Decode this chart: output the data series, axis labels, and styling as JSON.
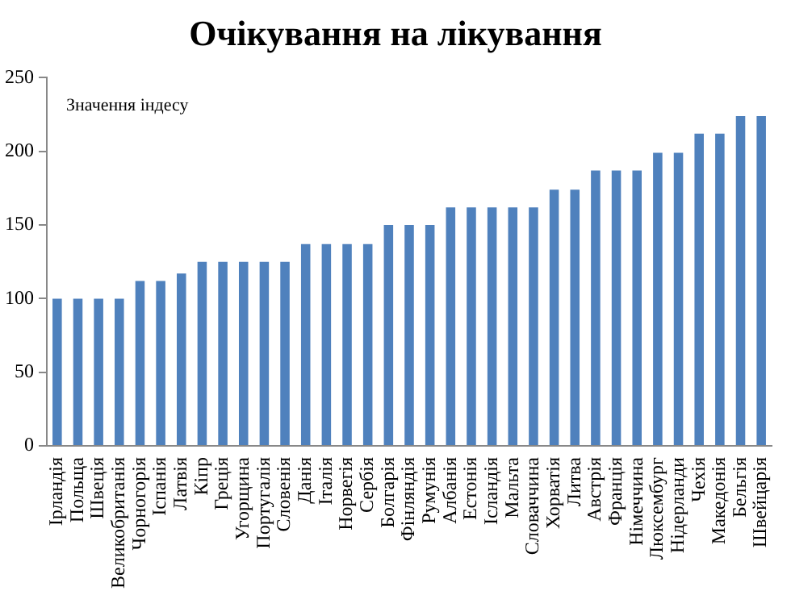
{
  "chart_data": {
    "type": "bar",
    "title": "Очікування на лікування",
    "ylabel": "Значення індесу",
    "categories": [
      "Ірландія",
      "Польща",
      "Швеція",
      "Великобританія",
      "Чорногорія",
      "Іспанія",
      "Латвія",
      "Кіпр",
      "Греція",
      "Угорщина",
      "Португалія",
      "Словенія",
      "Данія",
      "Італія",
      "Норвегія",
      "Сербія",
      "Болгарія",
      "Фінляндія",
      "Румунія",
      "Албанія",
      "Естонія",
      "Ісландія",
      "Мальта",
      "Словаччина",
      "Хорватія",
      "Литва",
      "Австрія",
      "Франція",
      "Німеччина",
      "Люксембург",
      "Нідерланди",
      "Чехія",
      "Македонія",
      "Бельгія",
      "Швейцарія"
    ],
    "values": [
      100,
      100,
      100,
      100,
      112,
      112,
      117,
      125,
      125,
      125,
      125,
      125,
      137,
      137,
      137,
      137,
      150,
      150,
      150,
      162,
      162,
      162,
      162,
      162,
      174,
      174,
      187,
      187,
      187,
      199,
      199,
      212,
      212,
      224,
      224
    ],
    "color": "#4f81bd",
    "ylim": [
      0,
      250
    ],
    "yticks": [
      0,
      50,
      100,
      150,
      200,
      250
    ],
    "grid": false
  }
}
